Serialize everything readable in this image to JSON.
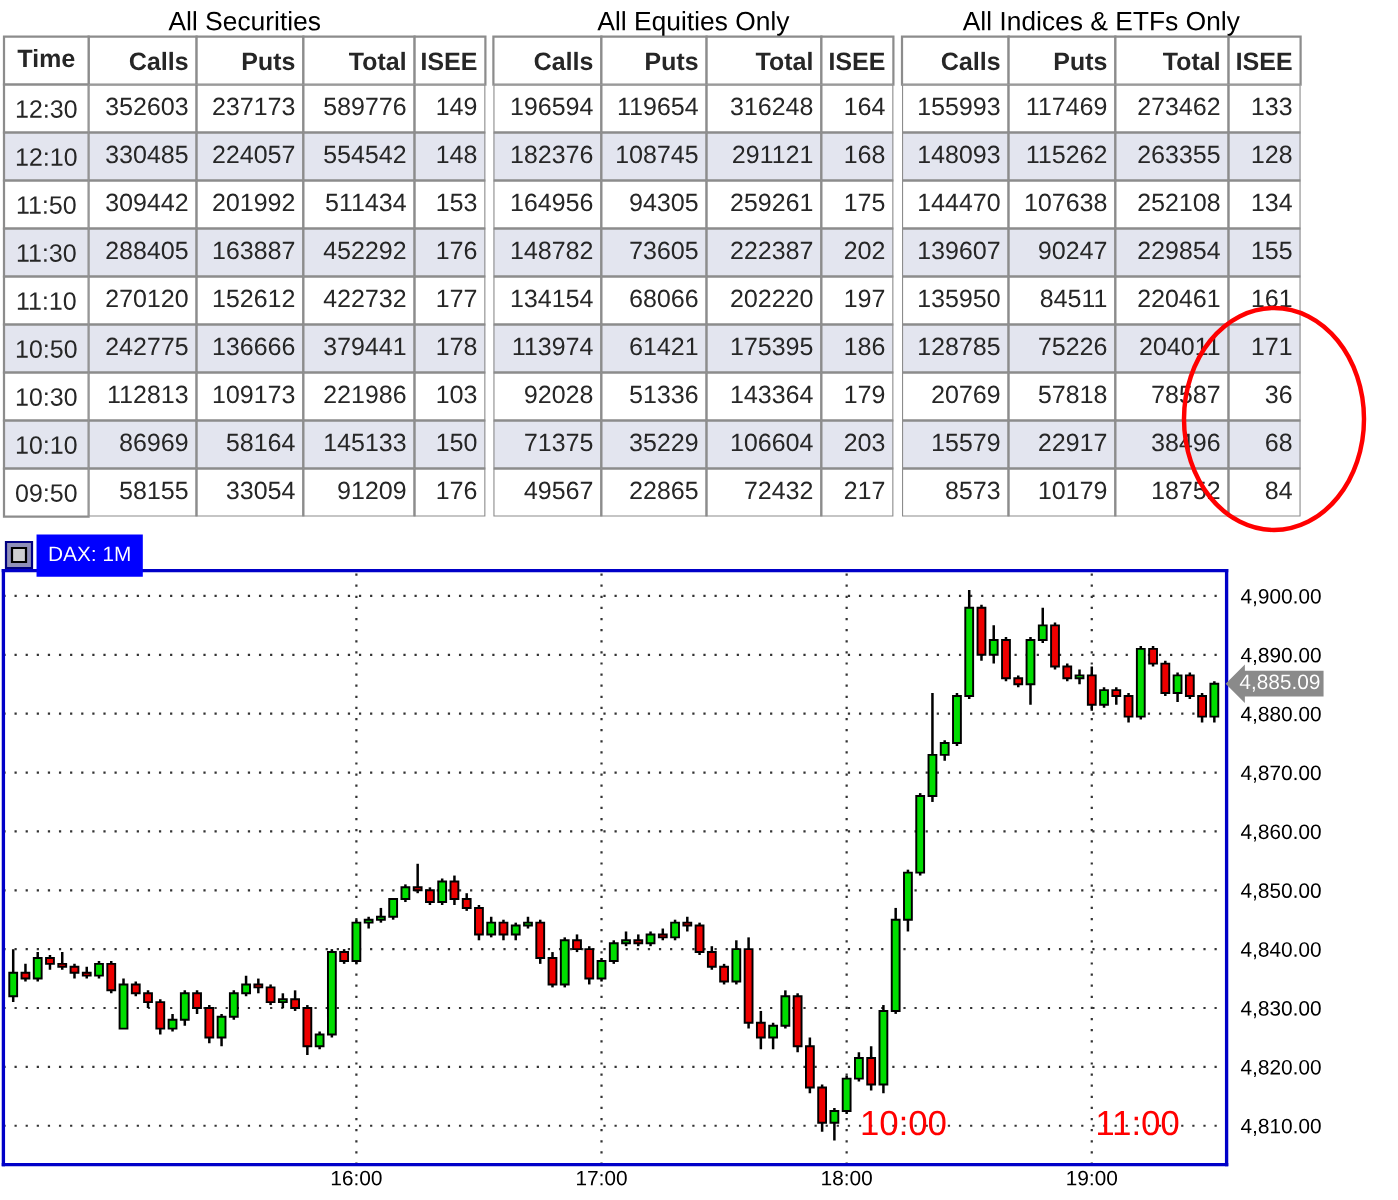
{
  "chart_data": [
    {
      "type": "heatmap",
      "title": "All Securities",
      "ylabel": "Time",
      "categories": [
        "Calls",
        "Puts",
        "Total",
        "ISEE"
      ],
      "y_categories": [
        "12:30",
        "12:10",
        "11:50",
        "11:30",
        "11:10",
        "10:50",
        "10:30",
        "10:10",
        "09:50"
      ],
      "data_labels": true,
      "cells": [
        [
          352603,
          237173,
          589776,
          149
        ],
        [
          330485,
          224057,
          554542,
          148
        ],
        [
          309442,
          201992,
          511434,
          153
        ],
        [
          288405,
          163887,
          452292,
          176
        ],
        [
          270120,
          152612,
          422732,
          177
        ],
        [
          242775,
          136666,
          379441,
          178
        ],
        [
          112813,
          109173,
          221986,
          103
        ],
        [
          86969,
          58164,
          145133,
          150
        ],
        [
          58155,
          33054,
          91209,
          176
        ]
      ]
    },
    {
      "type": "heatmap",
      "title": "All Equities Only",
      "categories": [
        "Calls",
        "Puts",
        "Total",
        "ISEE"
      ],
      "y_categories": [
        null,
        null,
        null,
        null,
        null,
        null,
        null,
        null,
        null
      ],
      "data_labels": true,
      "cells": [
        [
          196594,
          119654,
          316248,
          164
        ],
        [
          182376,
          108745,
          291121,
          168
        ],
        [
          164956,
          94305,
          259261,
          175
        ],
        [
          148782,
          73605,
          222387,
          202
        ],
        [
          134154,
          68066,
          202220,
          197
        ],
        [
          113974,
          61421,
          175395,
          186
        ],
        [
          92028,
          51336,
          143364,
          179
        ],
        [
          71375,
          35229,
          106604,
          203
        ],
        [
          49567,
          22865,
          72432,
          217
        ]
      ]
    },
    {
      "type": "heatmap",
      "title": "All Indices & ETFs Only",
      "categories": [
        "Calls",
        "Puts",
        "Total",
        "ISEE"
      ],
      "y_categories": [
        null,
        null,
        null,
        null,
        null,
        null,
        null,
        null,
        null
      ],
      "data_labels": true,
      "cells": [
        [
          155993,
          117469,
          273462,
          133
        ],
        [
          148093,
          115262,
          263355,
          128
        ],
        [
          144470,
          107638,
          252108,
          134
        ],
        [
          139607,
          90247,
          229854,
          155
        ],
        [
          135950,
          84511,
          220461,
          161
        ],
        [
          128785,
          75226,
          204011,
          171
        ],
        [
          20769,
          57818,
          78587,
          36
        ],
        [
          15579,
          22917,
          38496,
          68
        ],
        [
          8573,
          10179,
          18752,
          84
        ]
      ]
    },
    {
      "type": "candlestick",
      "title": "DAX: 1M",
      "x": [
        14.6,
        14.65,
        14.7,
        14.75,
        14.8,
        14.85,
        14.9,
        14.95,
        15,
        15.05,
        15.1,
        15.15,
        15.2,
        15.25,
        15.3,
        15.35,
        15.4,
        15.45,
        15.5,
        15.55,
        15.6,
        15.65,
        15.7,
        15.75,
        15.8,
        15.85,
        15.9,
        15.95,
        16,
        16.05,
        16.1,
        16.15,
        16.2,
        16.25,
        16.3,
        16.35,
        16.4,
        16.45,
        16.5,
        16.55,
        16.6,
        16.65,
        16.7,
        16.75,
        16.8,
        16.85,
        16.9,
        16.95,
        17,
        17.05,
        17.1,
        17.15,
        17.2,
        17.25,
        17.3,
        17.35,
        17.4,
        17.45,
        17.5,
        17.55,
        17.6,
        17.65,
        17.7,
        17.75,
        17.8,
        17.85,
        17.9,
        17.95,
        18,
        18.05,
        18.1,
        18.15,
        18.2,
        18.25,
        18.3,
        18.35,
        18.4,
        18.45,
        18.5,
        18.55,
        18.6,
        18.65,
        18.7,
        18.75,
        18.8,
        18.85,
        18.9,
        18.95,
        19,
        19.05,
        19.1,
        19.15,
        19.2,
        19.25,
        19.3,
        19.35,
        19.4,
        19.45,
        19.5
      ],
      "ohlc": [
        [
          4832,
          4840,
          4831,
          4836
        ],
        [
          4836,
          4837.5,
          4834.5,
          4835
        ],
        [
          4835,
          4839.5,
          4834.5,
          4838.5
        ],
        [
          4838.5,
          4839,
          4836.5,
          4837.5
        ],
        [
          4837.5,
          4839.5,
          4836.5,
          4837
        ],
        [
          4837,
          4837.5,
          4835,
          4836
        ],
        [
          4836,
          4837,
          4835,
          4835.5
        ],
        [
          4835.5,
          4838,
          4835,
          4837.5
        ],
        [
          4837.5,
          4838,
          4832.5,
          4833
        ],
        [
          4826.5,
          4835,
          4826.5,
          4834
        ],
        [
          4834,
          4834.5,
          4832,
          4832.5
        ],
        [
          4832.5,
          4833,
          4830,
          4831
        ],
        [
          4831,
          4831.5,
          4825.5,
          4826.5
        ],
        [
          4826.5,
          4829,
          4826,
          4828
        ],
        [
          4828,
          4833,
          4827,
          4832.5
        ],
        [
          4832.5,
          4833,
          4829,
          4830
        ],
        [
          4830,
          4830.5,
          4824,
          4825
        ],
        [
          4825,
          4829,
          4823.5,
          4828.5
        ],
        [
          4828.5,
          4833,
          4828,
          4832.5
        ],
        [
          4832.5,
          4835.5,
          4832,
          4834
        ],
        [
          4834,
          4835,
          4832.5,
          4833.5
        ],
        [
          4833.5,
          4834,
          4830.5,
          4831
        ],
        [
          4831,
          4832.5,
          4830,
          4831.5
        ],
        [
          4831.5,
          4833,
          4829.5,
          4830
        ],
        [
          4830,
          4830.5,
          4822,
          4823.5
        ],
        [
          4823.5,
          4826,
          4823,
          4825.5
        ],
        [
          4825.5,
          4840,
          4825,
          4839.5
        ],
        [
          4839.5,
          4840,
          4837.5,
          4838
        ],
        [
          4838,
          4845,
          4837.5,
          4844.5
        ],
        [
          4844.5,
          4845.5,
          4843.5,
          4845
        ],
        [
          4845,
          4847,
          4844.5,
          4845.5
        ],
        [
          4845.5,
          4848.5,
          4845,
          4848.5
        ],
        [
          4848.5,
          4851,
          4848,
          4850.5
        ],
        [
          4850.5,
          4854.5,
          4849.5,
          4850
        ],
        [
          4850,
          4850.5,
          4847.5,
          4848
        ],
        [
          4848,
          4852,
          4847.5,
          4851.5
        ],
        [
          4851.5,
          4852.5,
          4847.5,
          4848.5
        ],
        [
          4848.5,
          4849.5,
          4846.5,
          4847
        ],
        [
          4847,
          4847.5,
          4841.5,
          4842.5
        ],
        [
          4842.5,
          4845.5,
          4842,
          4844.5
        ],
        [
          4844.5,
          4845,
          4841.5,
          4842.5
        ],
        [
          4842.5,
          4844.5,
          4841.5,
          4844
        ],
        [
          4844,
          4845.5,
          4843.5,
          4844.5
        ],
        [
          4844.5,
          4845,
          4837.5,
          4838.5
        ],
        [
          4838.5,
          4839.5,
          4833.5,
          4834
        ],
        [
          4834,
          4842,
          4833.5,
          4841.5
        ],
        [
          4841.5,
          4842.5,
          4839.5,
          4840
        ],
        [
          4840,
          4840.5,
          4834,
          4835
        ],
        [
          4835,
          4838.5,
          4834.5,
          4838
        ],
        [
          4838,
          4841.5,
          4837.5,
          4841
        ],
        [
          4841,
          4843,
          4840.5,
          4841.5
        ],
        [
          4841.5,
          4842.5,
          4840.5,
          4841
        ],
        [
          4841,
          4843,
          4840.5,
          4842.5
        ],
        [
          4842.5,
          4843.5,
          4841.5,
          4842
        ],
        [
          4842,
          4845,
          4841.5,
          4844.5
        ],
        [
          4844.5,
          4845.5,
          4843,
          4844
        ],
        [
          4844,
          4844.5,
          4839,
          4839.5
        ],
        [
          4839.5,
          4840.5,
          4836.5,
          4837
        ],
        [
          4837,
          4837.5,
          4834,
          4834.5
        ],
        [
          4834.5,
          4841.5,
          4834,
          4840
        ],
        [
          4840,
          4842,
          4826.5,
          4827.5
        ],
        [
          4827.5,
          4829.5,
          4823,
          4825
        ],
        [
          4825,
          4827.5,
          4823,
          4827
        ],
        [
          4827,
          4833,
          4826.5,
          4832
        ],
        [
          4832,
          4832.5,
          4822.5,
          4823.5
        ],
        [
          4823.5,
          4825,
          4815.5,
          4816.5
        ],
        [
          4816.5,
          4817,
          4809,
          4810.5
        ],
        [
          4810.5,
          4813,
          4807.5,
          4812.5
        ],
        [
          4812.5,
          4818.5,
          4812,
          4818
        ],
        [
          4818,
          4822.5,
          4817.5,
          4821.5
        ],
        [
          4821.5,
          4823.5,
          4816,
          4817
        ],
        [
          4817,
          4830.5,
          4815.5,
          4829.5
        ],
        [
          4829.5,
          4847,
          4829,
          4845
        ],
        [
          4845,
          4853.5,
          4843,
          4853
        ],
        [
          4853,
          4866.5,
          4852.5,
          4866
        ],
        [
          4866,
          4883.5,
          4865,
          4873
        ],
        [
          4873,
          4875.5,
          4872,
          4875
        ],
        [
          4875,
          4883.5,
          4874.5,
          4883
        ],
        [
          4883,
          4901,
          4882.5,
          4898
        ],
        [
          4898,
          4898.5,
          4889,
          4890
        ],
        [
          4890,
          4895,
          4888.5,
          4892.5
        ],
        [
          4892.5,
          4893,
          4885.5,
          4886
        ],
        [
          4886,
          4886.5,
          4884.5,
          4885
        ],
        [
          4885,
          4893,
          4881.5,
          4892.5
        ],
        [
          4892.5,
          4898,
          4892,
          4895
        ],
        [
          4895,
          4895.5,
          4887.5,
          4888
        ],
        [
          4888,
          4888.5,
          4885.5,
          4886
        ],
        [
          4886,
          4887.5,
          4885,
          4886.5
        ],
        [
          4886.5,
          4888,
          4880.5,
          4881.5
        ],
        [
          4881.5,
          4884.5,
          4881,
          4884
        ],
        [
          4884,
          4884.5,
          4881.5,
          4883
        ],
        [
          4883,
          4883.5,
          4878.5,
          4879.5
        ],
        [
          4879.5,
          4891.5,
          4879,
          4891
        ],
        [
          4891,
          4891.5,
          4888,
          4888.5
        ],
        [
          4888.5,
          4889,
          4883,
          4883.5
        ],
        [
          4883.5,
          4887,
          4882,
          4886.5
        ],
        [
          4886.5,
          4887,
          4882.5,
          4883
        ],
        [
          4883,
          4883.5,
          4878.5,
          4879.5
        ],
        [
          4879.5,
          4885.5,
          4878.5,
          4885.09
        ]
      ],
      "colors": [
        "#00dd00",
        "#ee0000",
        "#00dd00",
        "#ee0000",
        "#ee0000",
        "#ee0000",
        "#ee0000",
        "#00dd00",
        "#ee0000",
        "#00dd00",
        "#ee0000",
        "#ee0000",
        "#ee0000",
        "#00dd00",
        "#00dd00",
        "#ee0000",
        "#ee0000",
        "#00dd00",
        "#00dd00",
        "#00dd00",
        "#ee0000",
        "#ee0000",
        "#00dd00",
        "#ee0000",
        "#ee0000",
        "#00dd00",
        "#00dd00",
        "#ee0000",
        "#00dd00",
        "#00dd00",
        "#00dd00",
        "#00dd00",
        "#00dd00",
        "#ee0000",
        "#ee0000",
        "#00dd00",
        "#ee0000",
        "#ee0000",
        "#ee0000",
        "#00dd00",
        "#ee0000",
        "#00dd00",
        "#00dd00",
        "#ee0000",
        "#ee0000",
        "#00dd00",
        "#ee0000",
        "#ee0000",
        "#00dd00",
        "#00dd00",
        "#00dd00",
        "#ee0000",
        "#00dd00",
        "#ee0000",
        "#00dd00",
        "#ee0000",
        "#ee0000",
        "#ee0000",
        "#ee0000",
        "#00dd00",
        "#ee0000",
        "#ee0000",
        "#00dd00",
        "#00dd00",
        "#ee0000",
        "#ee0000",
        "#ee0000",
        "#00dd00",
        "#00dd00",
        "#00dd00",
        "#ee0000",
        "#00dd00",
        "#00dd00",
        "#00dd00",
        "#00dd00",
        "#00dd00",
        "#00dd00",
        "#00dd00",
        "#00dd00",
        "#ee0000",
        "#00dd00",
        "#ee0000",
        "#ee0000",
        "#00dd00",
        "#00dd00",
        "#ee0000",
        "#ee0000",
        "#00dd00",
        "#ee0000",
        "#00dd00",
        "#ee0000",
        "#ee0000",
        "#00dd00",
        "#ee0000",
        "#ee0000",
        "#00dd00",
        "#ee0000",
        "#ee0000",
        "#00dd00"
      ],
      "xlim": [
        14.56,
        19.55
      ],
      "ylim": [
        4803.4,
        4904.3
      ],
      "xticks": [
        {
          "value": 16,
          "label": "16:00"
        },
        {
          "value": 17,
          "label": "17:00"
        },
        {
          "value": 18,
          "label": "18:00"
        },
        {
          "value": 19,
          "label": "19:00"
        }
      ],
      "yticks": [
        {
          "value": 4810,
          "label": "4,810.00"
        },
        {
          "value": 4820,
          "label": "4,820.00"
        },
        {
          "value": 4830,
          "label": "4,830.00"
        },
        {
          "value": 4840,
          "label": "4,840.00"
        },
        {
          "value": 4850,
          "label": "4,850.00"
        },
        {
          "value": 4860,
          "label": "4,860.00"
        },
        {
          "value": 4870,
          "label": "4,870.00"
        },
        {
          "value": 4880,
          "label": "4,880.00"
        },
        {
          "value": 4890,
          "label": "4,890.00"
        },
        {
          "value": 4900,
          "label": "4,900.00"
        }
      ],
      "grid": true,
      "annotations": [
        "10:00",
        "11:00",
        {
          "text": "4,885.09",
          "x": 19.5,
          "y": 4885.09
        }
      ]
    }
  ]
}
